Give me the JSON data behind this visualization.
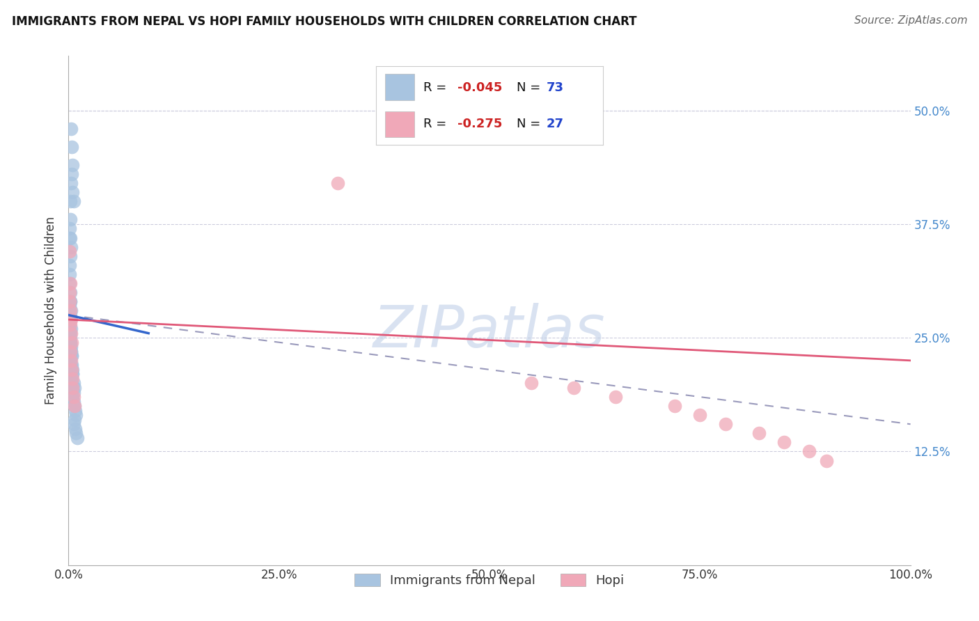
{
  "title": "IMMIGRANTS FROM NEPAL VS HOPI FAMILY HOUSEHOLDS WITH CHILDREN CORRELATION CHART",
  "source": "Source: ZipAtlas.com",
  "ylabel": "Family Households with Children",
  "xlim": [
    0.0,
    1.0
  ],
  "ylim": [
    0.0,
    0.56
  ],
  "xticks": [
    0.0,
    0.25,
    0.5,
    0.75,
    1.0
  ],
  "xtick_labels": [
    "0.0%",
    "25.0%",
    "50.0%",
    "75.0%",
    "100.0%"
  ],
  "yticks": [
    0.125,
    0.25,
    0.375,
    0.5
  ],
  "ytick_labels": [
    "12.5%",
    "25.0%",
    "37.5%",
    "50.0%"
  ],
  "blue_R": -0.045,
  "blue_N": 73,
  "pink_R": -0.275,
  "pink_N": 27,
  "blue_color": "#a8c4e0",
  "pink_color": "#f0a8b8",
  "blue_line_color": "#3366cc",
  "pink_line_color": "#e05878",
  "dashed_line_color": "#9999bb",
  "watermark_text": "ZIPatlas",
  "watermark_color": "#c0d0e8",
  "legend_label1": "Immigrants from Nepal",
  "legend_label2": "Hopi",
  "blue_scatter_x": [
    0.003,
    0.004,
    0.005,
    0.004,
    0.005,
    0.006,
    0.003,
    0.002,
    0.002,
    0.002,
    0.003,
    0.001,
    0.002,
    0.001,
    0.001,
    0.001,
    0.001,
    0.002,
    0.002,
    0.003,
    0.001,
    0.001,
    0.001,
    0.001,
    0.001,
    0.001,
    0.002,
    0.001,
    0.001,
    0.001,
    0.002,
    0.001,
    0.001,
    0.001,
    0.002,
    0.001,
    0.003,
    0.004,
    0.002,
    0.003,
    0.004,
    0.005,
    0.003,
    0.004,
    0.005,
    0.006,
    0.002,
    0.001,
    0.001,
    0.002,
    0.002,
    0.003,
    0.002,
    0.002,
    0.002,
    0.003,
    0.003,
    0.004,
    0.004,
    0.005,
    0.005,
    0.006,
    0.007,
    0.005,
    0.006,
    0.007,
    0.008,
    0.009,
    0.007,
    0.006,
    0.008,
    0.009,
    0.01
  ],
  "blue_scatter_y": [
    0.48,
    0.46,
    0.44,
    0.43,
    0.41,
    0.4,
    0.42,
    0.4,
    0.38,
    0.36,
    0.35,
    0.37,
    0.34,
    0.36,
    0.33,
    0.32,
    0.31,
    0.3,
    0.29,
    0.28,
    0.27,
    0.265,
    0.26,
    0.255,
    0.25,
    0.245,
    0.24,
    0.235,
    0.23,
    0.225,
    0.22,
    0.27,
    0.26,
    0.255,
    0.245,
    0.24,
    0.235,
    0.23,
    0.225,
    0.22,
    0.215,
    0.21,
    0.205,
    0.2,
    0.195,
    0.19,
    0.29,
    0.285,
    0.28,
    0.275,
    0.27,
    0.26,
    0.255,
    0.25,
    0.245,
    0.24,
    0.235,
    0.23,
    0.22,
    0.215,
    0.21,
    0.2,
    0.195,
    0.185,
    0.18,
    0.175,
    0.17,
    0.165,
    0.16,
    0.155,
    0.15,
    0.145,
    0.14
  ],
  "pink_scatter_x": [
    0.001,
    0.002,
    0.001,
    0.001,
    0.002,
    0.003,
    0.002,
    0.003,
    0.004,
    0.002,
    0.003,
    0.004,
    0.005,
    0.32,
    0.005,
    0.006,
    0.007,
    0.55,
    0.6,
    0.65,
    0.72,
    0.75,
    0.78,
    0.82,
    0.85,
    0.88,
    0.9
  ],
  "pink_scatter_y": [
    0.345,
    0.31,
    0.3,
    0.29,
    0.28,
    0.27,
    0.265,
    0.255,
    0.245,
    0.235,
    0.225,
    0.215,
    0.205,
    0.42,
    0.195,
    0.185,
    0.175,
    0.2,
    0.195,
    0.185,
    0.175,
    0.165,
    0.155,
    0.145,
    0.135,
    0.125,
    0.115
  ],
  "blue_line_x": [
    0.0,
    0.095
  ],
  "blue_line_y": [
    0.275,
    0.255
  ],
  "dash_line_x": [
    0.0,
    1.0
  ],
  "dash_line_y": [
    0.275,
    0.155
  ],
  "pink_line_x": [
    0.0,
    1.0
  ],
  "pink_line_y": [
    0.27,
    0.225
  ]
}
